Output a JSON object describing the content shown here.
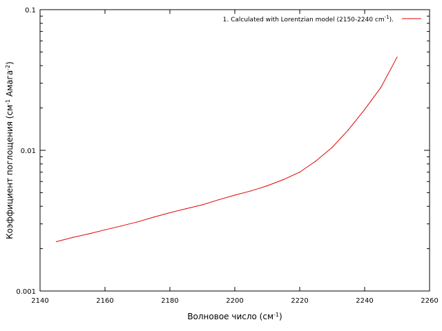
{
  "chart_data": {
    "type": "line",
    "x_scale": "linear",
    "y_scale": "log",
    "xlim": [
      2140,
      2260
    ],
    "ylim": [
      0.001,
      0.1
    ],
    "x_ticks": [
      2140,
      2160,
      2180,
      2200,
      2220,
      2240,
      2260
    ],
    "x_tick_labels": [
      "2140",
      "2160",
      "2180",
      "2200",
      "2220",
      "2240",
      "2260"
    ],
    "y_ticks": [
      0.001,
      0.01,
      0.1
    ],
    "y_tick_labels": [
      "0.001",
      "0.01",
      "0.1"
    ],
    "xlabel": {
      "text": "Волновое число (см",
      "sup": "-1",
      "tail": ")"
    },
    "ylabel": {
      "parts": [
        {
          "t": "Коэффициент поглощения (см"
        },
        {
          "t": "-1",
          "sup": true
        },
        {
          "t": " Амага"
        },
        {
          "t": "-2",
          "sup": true
        },
        {
          "t": ")"
        }
      ]
    },
    "grid": false,
    "legend_position": "top-right",
    "series": [
      {
        "name": {
          "text": "1. Calculated with Lorentzian model (2150-2240 cm",
          "sup": "-1",
          "tail": ")."
        },
        "color": "#e00000",
        "x": [
          2145,
          2150,
          2155,
          2160,
          2165,
          2170,
          2175,
          2180,
          2185,
          2190,
          2195,
          2200,
          2205,
          2210,
          2215,
          2220,
          2225,
          2230,
          2235,
          2240,
          2245,
          2250
        ],
        "y": [
          0.00224,
          0.0024,
          0.00255,
          0.00272,
          0.0029,
          0.0031,
          0.00335,
          0.0036,
          0.00385,
          0.0041,
          0.00445,
          0.0048,
          0.00515,
          0.0056,
          0.0062,
          0.007,
          0.0084,
          0.0105,
          0.014,
          0.0195,
          0.028,
          0.046
        ]
      }
    ]
  }
}
